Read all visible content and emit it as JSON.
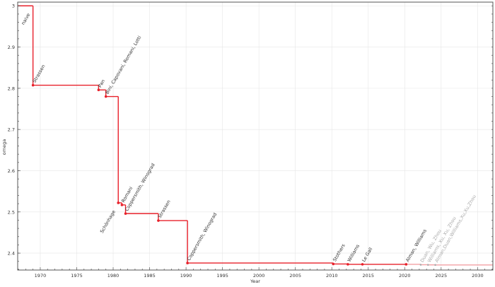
{
  "chart_data": {
    "type": "line",
    "step": true,
    "title": "",
    "xlabel": "Year",
    "ylabel": "omega",
    "xlim": [
      1966.9,
      2032.1
    ],
    "ylim": [
      2.359,
      3.009
    ],
    "xticks": [
      1970,
      1975,
      1980,
      1985,
      1990,
      1995,
      2000,
      2005,
      2010,
      2015,
      2020,
      2025,
      2030
    ],
    "yticks": [
      2.4,
      2.5,
      2.6,
      2.7,
      2.8,
      2.9,
      3
    ],
    "ytick_labels": [
      "2.4",
      "2.5",
      "2.6",
      "2.7",
      "2.8",
      "2.9",
      "3"
    ],
    "grid": true,
    "line_color": "#e8202a",
    "faded_color": "#aaaaaa",
    "line_start": {
      "year": 1966.9,
      "omega": 3
    },
    "line_end_year": 2032.1,
    "points": [
      {
        "label": "naive",
        "year": 1969.0,
        "omega": 3.0,
        "label_side": "left",
        "marker": false
      },
      {
        "label": "Strassen",
        "year": 1969.0,
        "omega": 2.8074
      },
      {
        "label": "Pan",
        "year": 1978.0,
        "omega": 2.796
      },
      {
        "label": "Bini, Capovani, Romani, Lotti",
        "year": 1979.0,
        "omega": 2.78
      },
      {
        "label": "Schönhage",
        "year": 1980.7,
        "omega": 2.522,
        "label_side": "left"
      },
      {
        "label": "Romani",
        "year": 1981.2,
        "omega": 2.517
      },
      {
        "label": "Coppersmith, Winograd",
        "year": 1981.7,
        "omega": 2.496
      },
      {
        "label": "Strassen",
        "year": 1986.2,
        "omega": 2.479
      },
      {
        "label": "Coppersmith, Winograd",
        "year": 1990.2,
        "omega": 2.376
      },
      {
        "label": "Stothers",
        "year": 2010.2,
        "omega": 2.3737
      },
      {
        "label": "Williams",
        "year": 2012.2,
        "omega": 2.3729
      },
      {
        "label": "Le Gall",
        "year": 2014.2,
        "omega": 2.3728639
      },
      {
        "label": "Alman, Williams",
        "year": 2020.2,
        "omega": 2.3728596
      },
      {
        "label": "Duan, Wu, Zhou",
        "year": 2022.2,
        "omega": 2.371866,
        "faded": true
      },
      {
        "label": "Williams, Xu, Xu, Zhou",
        "year": 2023.2,
        "omega": 2.371552,
        "faded": true
      },
      {
        "label": "Alman,Duan,Williams,Xu,Xu,Zhou",
        "year": 2024.2,
        "omega": 2.371339,
        "faded": true
      }
    ]
  }
}
